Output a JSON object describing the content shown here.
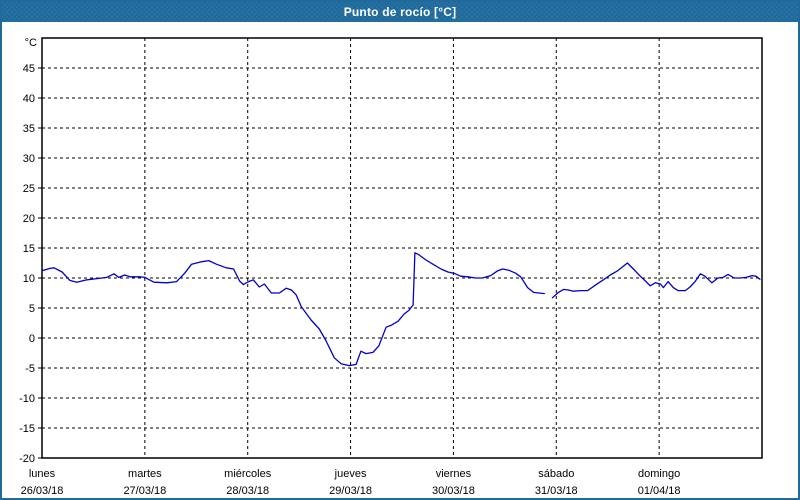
{
  "window": {
    "title": "Punto de rocío [°C]"
  },
  "theme": {
    "titlebar_bg": "#1F6A9A",
    "titlebar_text": "#FFFFFF",
    "frame_border": "#1F6A9A",
    "chart_bg": "#FFFFFF",
    "axis_color": "#000000",
    "grid_color": "#000000",
    "label_color": "#000000",
    "line_color": "#0000CC"
  },
  "chart_data": {
    "type": "line",
    "title": "Punto de rocío [°C]",
    "ylabel": "°C",
    "ylim": [
      -20,
      50
    ],
    "yticks": [
      45,
      40,
      35,
      30,
      25,
      20,
      15,
      10,
      5,
      0,
      -5,
      -10,
      -15,
      -20
    ],
    "grid": "dashed",
    "legend_position": "none",
    "x_total_hours": 168,
    "x_categories": [
      {
        "day": "lunes",
        "date": "26/03/18"
      },
      {
        "day": "martes",
        "date": "27/03/18"
      },
      {
        "day": "miércoles",
        "date": "28/03/18"
      },
      {
        "day": "jueves",
        "date": "29/03/18"
      },
      {
        "day": "viernes",
        "date": "30/03/18"
      },
      {
        "day": "sábado",
        "date": "31/03/18"
      },
      {
        "day": "domingo",
        "date": "01/04/18"
      }
    ],
    "series": [
      {
        "name": "Punto de rocío [°C]",
        "color": "#0000CC",
        "points": [
          [
            0,
            11.2
          ],
          [
            1.9,
            11.6
          ],
          [
            2.8,
            11.7
          ],
          [
            4.7,
            11.0
          ],
          [
            6.5,
            9.6
          ],
          [
            8.1,
            9.3
          ],
          [
            10.5,
            9.7
          ],
          [
            12.8,
            9.9
          ],
          [
            15.1,
            10.1
          ],
          [
            16.8,
            10.7
          ],
          [
            17.9,
            10.1
          ],
          [
            19.3,
            10.5
          ],
          [
            20.5,
            10.2
          ],
          [
            22.8,
            10.2
          ],
          [
            24,
            10.1
          ],
          [
            26.1,
            9.3
          ],
          [
            29.1,
            9.2
          ],
          [
            31.4,
            9.4
          ],
          [
            33.3,
            10.8
          ],
          [
            34.9,
            12.3
          ],
          [
            37.2,
            12.7
          ],
          [
            38.9,
            12.9
          ],
          [
            40.7,
            12.3
          ],
          [
            43,
            11.7
          ],
          [
            44.7,
            11.5
          ],
          [
            46.1,
            9.5
          ],
          [
            47,
            8.9
          ],
          [
            48.2,
            9.4
          ],
          [
            49.3,
            9.7
          ],
          [
            50.7,
            8.5
          ],
          [
            51.9,
            9.0
          ],
          [
            53.5,
            7.5
          ],
          [
            55.4,
            7.5
          ],
          [
            57,
            8.3
          ],
          [
            58.2,
            8.0
          ],
          [
            59.3,
            7.2
          ],
          [
            60.5,
            5.2
          ],
          [
            62.8,
            3.0
          ],
          [
            64.7,
            1.5
          ],
          [
            66.3,
            -0.5
          ],
          [
            68.2,
            -3.3
          ],
          [
            69.8,
            -4.3
          ],
          [
            71.7,
            -4.6
          ],
          [
            73.3,
            -4.4
          ],
          [
            74.4,
            -2.2
          ],
          [
            75.6,
            -2.6
          ],
          [
            77.2,
            -2.4
          ],
          [
            78.6,
            -1.3
          ],
          [
            80.3,
            1.8
          ],
          [
            81.4,
            2.1
          ],
          [
            83.1,
            2.8
          ],
          [
            84.5,
            4.0
          ],
          [
            85.6,
            4.6
          ],
          [
            86.6,
            5.5
          ],
          [
            87,
            14.2
          ],
          [
            87.9,
            13.9
          ],
          [
            89.6,
            13.0
          ],
          [
            91.2,
            12.3
          ],
          [
            93.1,
            11.5
          ],
          [
            94.7,
            11.0
          ],
          [
            96.1,
            10.8
          ],
          [
            97.7,
            10.3
          ],
          [
            99.3,
            10.2
          ],
          [
            101.2,
            10.0
          ],
          [
            102.8,
            10.0
          ],
          [
            104.7,
            10.4
          ],
          [
            106.3,
            11.2
          ],
          [
            107.5,
            11.5
          ],
          [
            108.9,
            11.3
          ],
          [
            110.5,
            10.8
          ],
          [
            111.7,
            10.2
          ],
          [
            113.3,
            8.4
          ],
          [
            114.7,
            7.6
          ],
          [
            117.2,
            7.4
          ],
          null,
          [
            119.1,
            6.7
          ],
          [
            120.5,
            7.6
          ],
          [
            121.7,
            8.1
          ],
          [
            122.8,
            8.0
          ],
          [
            124,
            7.8
          ],
          [
            125.6,
            7.9
          ],
          [
            127.3,
            7.9
          ],
          [
            129.1,
            8.8
          ],
          [
            131,
            9.7
          ],
          [
            132.6,
            10.5
          ],
          [
            134.3,
            11.2
          ],
          [
            135.7,
            12.0
          ],
          [
            136.6,
            12.5
          ],
          [
            138,
            11.5
          ],
          [
            139.6,
            10.3
          ],
          [
            140.8,
            9.5
          ],
          [
            141.9,
            8.7
          ],
          [
            143.1,
            9.2
          ],
          [
            144.3,
            9.0
          ],
          [
            145,
            8.4
          ],
          [
            146.1,
            9.4
          ],
          [
            147.3,
            8.4
          ],
          [
            148.4,
            7.9
          ],
          [
            150.1,
            7.9
          ],
          [
            151.2,
            8.5
          ],
          [
            152.4,
            9.4
          ],
          [
            153.6,
            10.7
          ],
          [
            154.7,
            10.3
          ],
          [
            156.3,
            9.2
          ],
          [
            157.7,
            10.0
          ],
          [
            158.9,
            10.1
          ],
          [
            160.1,
            10.6
          ],
          [
            161.5,
            10.0
          ],
          [
            162.9,
            10.0
          ],
          [
            164.3,
            10.1
          ],
          [
            165.7,
            10.4
          ],
          [
            166.6,
            10.3
          ],
          [
            167.5,
            9.8
          ]
        ]
      }
    ]
  }
}
